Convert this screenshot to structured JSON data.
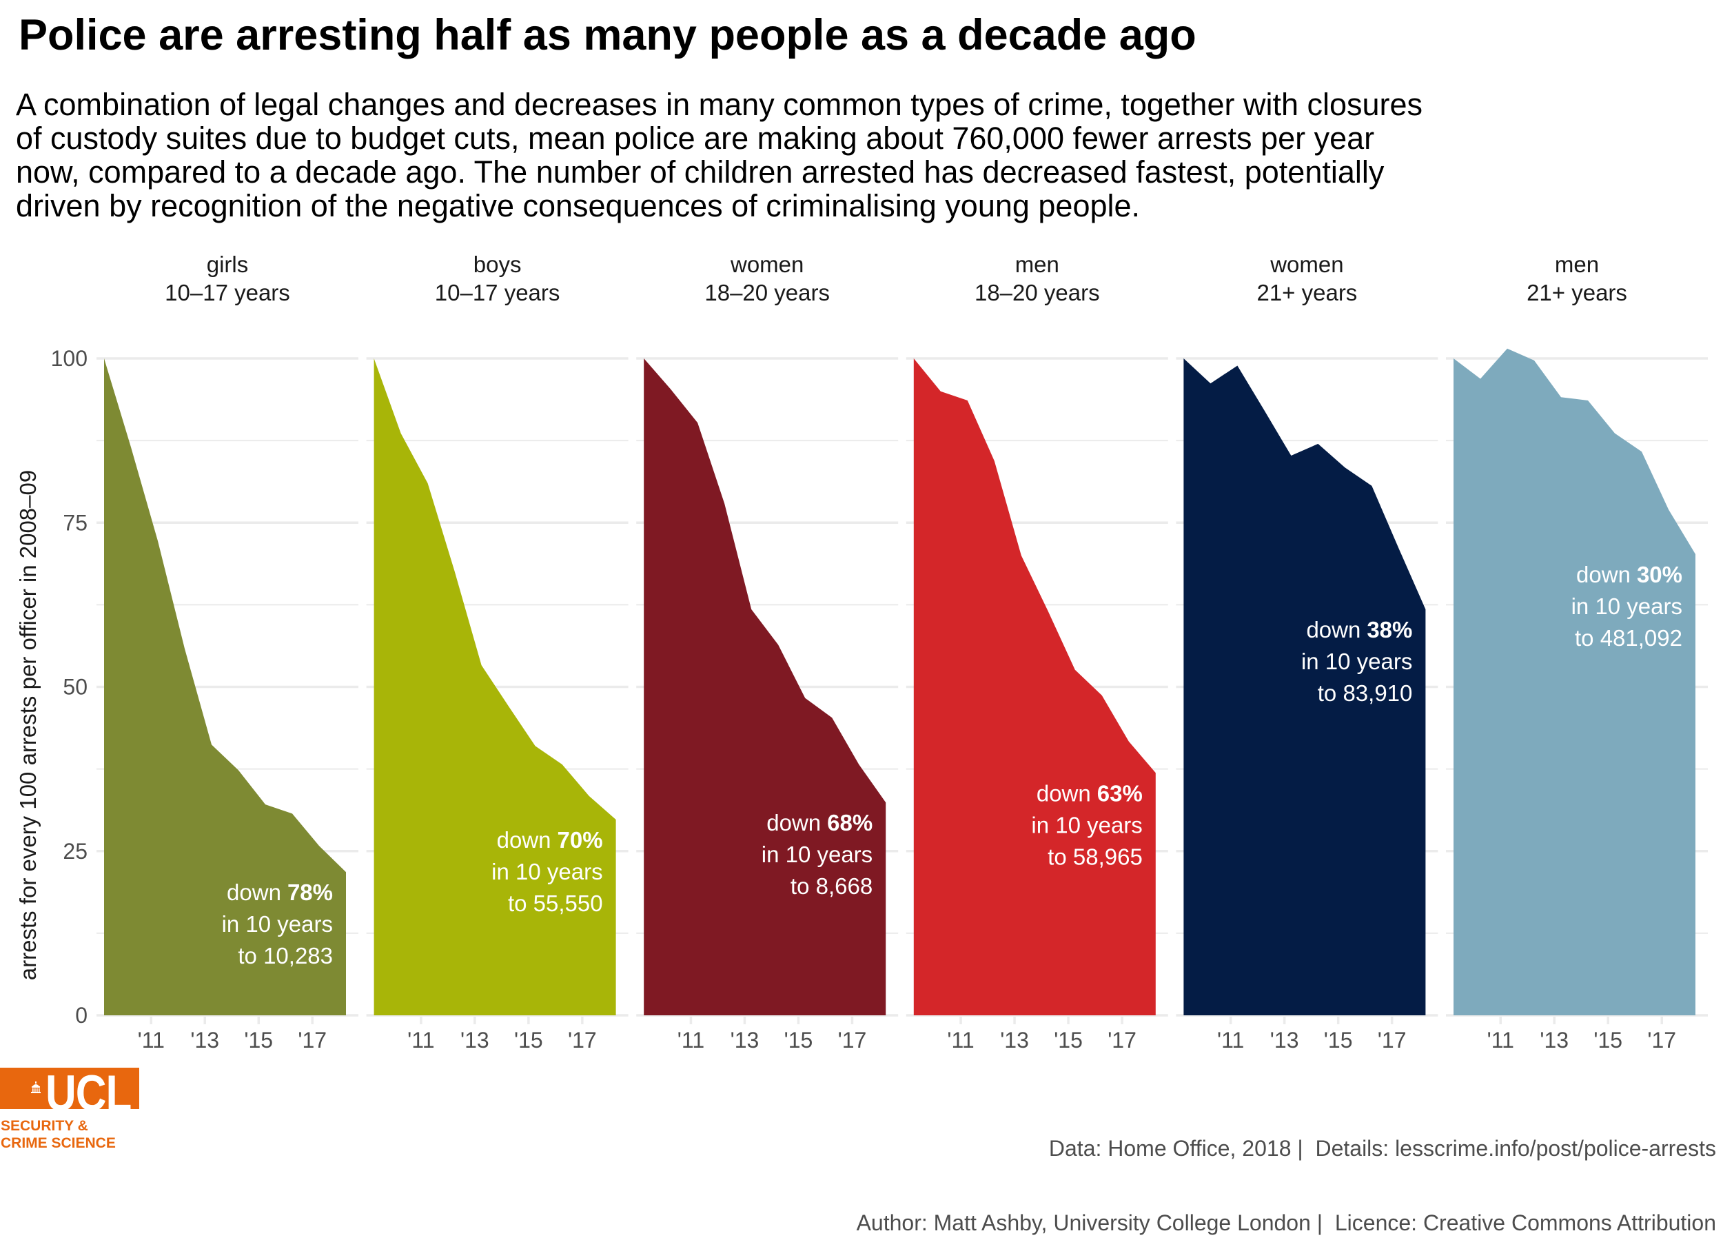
{
  "header": {
    "title": "Police are arresting half as many people as a decade ago",
    "subtitle_lines": [
      "A combination of legal changes and decreases in many common types of crime, together with closures",
      "of custody suites due to budget cuts, mean police are making about 760,000 fewer arrests per year",
      "now, compared to a decade ago. The number of children arrested has decreased fastest, potentially",
      "driven by recognition of the negative consequences of criminalising young people."
    ]
  },
  "chart_data": {
    "type": "area",
    "layout": "small-multiples",
    "ylabel": "arrests for every 100 arrests per officer in 2008–09",
    "xlabel": "",
    "ylim": [
      0,
      100
    ],
    "grid": true,
    "y_ticks": [
      {
        "value": 0,
        "label": "0"
      },
      {
        "value": 25,
        "label": "25"
      },
      {
        "value": 50,
        "label": "50"
      },
      {
        "value": 75,
        "label": "75"
      },
      {
        "value": 100,
        "label": "100"
      }
    ],
    "x_ticks": [
      {
        "value": 2011,
        "label": "'11"
      },
      {
        "value": 2013,
        "label": "'13"
      },
      {
        "value": 2015,
        "label": "'15"
      },
      {
        "value": 2017,
        "label": "'17"
      }
    ],
    "x": [
      2009.25,
      2010.25,
      2011.25,
      2012.25,
      2013.25,
      2014.25,
      2015.25,
      2016.25,
      2017.25,
      2018.25
    ],
    "series": [
      {
        "group": "girls",
        "age": "10–17 years",
        "color": "#7E8A33",
        "values": [
          100,
          86.5,
          72.2,
          55.8,
          41.2,
          37.3,
          32.1,
          30.7,
          25.8,
          21.8
        ],
        "annotation": {
          "down_word": "down",
          "pct": "78%",
          "line2": "in 10 years",
          "line3": "to 10,283"
        }
      },
      {
        "group": "boys",
        "age": "10–17 years",
        "color": "#A8B508",
        "values": [
          100,
          88.6,
          81.0,
          67.6,
          53.3,
          47.1,
          41.0,
          38.2,
          33.4,
          29.8
        ],
        "annotation": {
          "down_word": "down",
          "pct": "70%",
          "line2": "in 10 years",
          "line3": "to 55,550"
        }
      },
      {
        "group": "women",
        "age": "18–20 years",
        "color": "#7F1923",
        "values": [
          100,
          95.3,
          90.2,
          77.9,
          61.8,
          56.4,
          48.3,
          45.3,
          38.2,
          32.4
        ],
        "annotation": {
          "down_word": "down",
          "pct": "68%",
          "line2": "in 10 years",
          "line3": "to 8,668"
        }
      },
      {
        "group": "men",
        "age": "18–20 years",
        "color": "#D42629",
        "values": [
          100,
          95.0,
          93.6,
          84.4,
          70.0,
          61.5,
          52.6,
          48.7,
          41.7,
          36.9
        ],
        "annotation": {
          "down_word": "down",
          "pct": "63%",
          "line2": "in 10 years",
          "line3": "to 58,965"
        }
      },
      {
        "group": "women",
        "age": "21+ years",
        "color": "#041C45",
        "values": [
          100,
          96.2,
          98.9,
          92.1,
          85.2,
          87.0,
          83.4,
          80.6,
          71.1,
          61.8
        ],
        "annotation": {
          "down_word": "down",
          "pct": "38%",
          "line2": "in 10 years",
          "line3": "to 83,910"
        }
      },
      {
        "group": "men",
        "age": "21+ years",
        "color": "#7EAABD",
        "values": [
          100,
          96.9,
          101.5,
          99.7,
          94.1,
          93.6,
          88.6,
          85.8,
          77.0,
          70.2
        ],
        "annotation": {
          "down_word": "down",
          "pct": "30%",
          "line2": "in 10 years",
          "line3": "to 481,092"
        }
      }
    ]
  },
  "footer": {
    "line1": "Data: Home Office, 2018 |  Details: lesscrime.info/post/police-arrests",
    "line2": "Author: Matt Ashby, University College London |  Licence: Creative Commons Attribution"
  },
  "logo": {
    "wordmark": "UCL",
    "line1": "SECURITY &",
    "line2": "CRIME SCIENCE",
    "icon": "portico-icon",
    "color": "#E8670E"
  }
}
